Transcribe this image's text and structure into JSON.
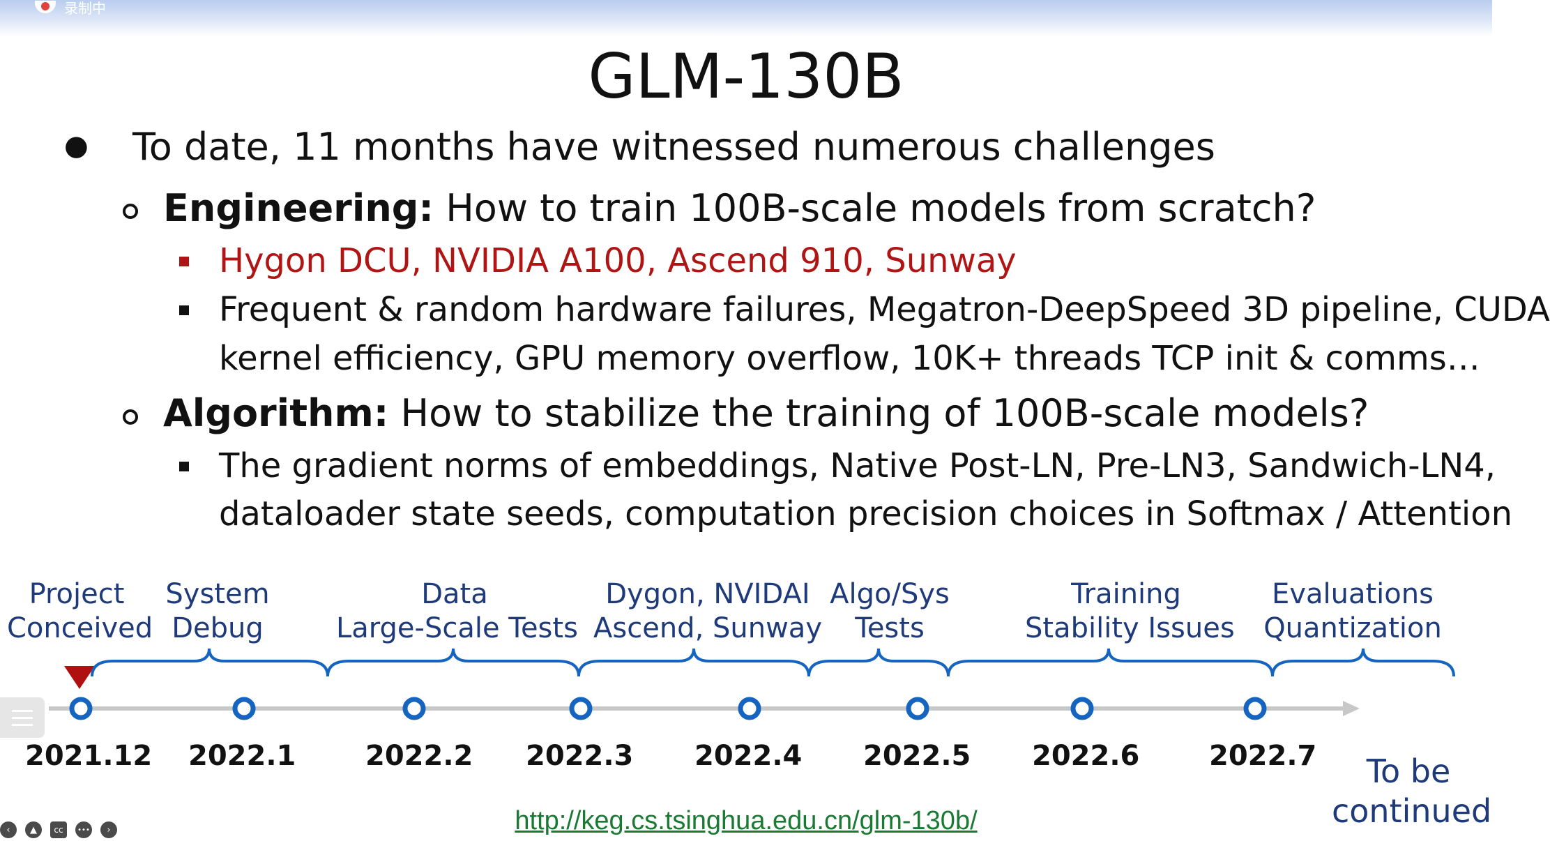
{
  "recording_label": "录制中",
  "title": "GLM-130B",
  "bullets": {
    "main": "To date, 11 months have witnessed numerous challenges",
    "engineering": {
      "label": "Engineering:",
      "text": " How to train 100B-scale models from scratch?",
      "items": [
        "Hygon DCU, NVIDIA A100, Ascend 910, Sunway",
        "Frequent & random hardware failures, Megatron-DeepSpeed 3D pipeline, CUDA",
        "kernel efficiency, GPU memory overflow, 10K+ threads TCP init & comms…"
      ]
    },
    "algorithm": {
      "label": "Algorithm:",
      "text": " How to stabilize the training of 100B-scale models?",
      "items": [
        "The gradient norms of embeddings, Native Post-LN, Pre-LN3, Sandwich-LN4,",
        "dataloader state seeds, computation precision choices in Softmax / Attention"
      ]
    }
  },
  "timeline": {
    "phases": [
      {
        "line1": "Project",
        "line2": "Conceived"
      },
      {
        "line1": "System",
        "line2": "Debug"
      },
      {
        "line1": "Data",
        "line2": "Large-Scale Tests"
      },
      {
        "line1": "Dygon, NVIDAI",
        "line2": "Ascend, Sunway"
      },
      {
        "line1": "Algo/Sys",
        "line2": "Tests"
      },
      {
        "line1": "Training",
        "line2": "Stability Issues"
      },
      {
        "line1": "Evaluations",
        "line2": "Quantization"
      }
    ],
    "dates": [
      "2021.12",
      "2022.1",
      "2022.2",
      "2022.3",
      "2022.4",
      "2022.5",
      "2022.6",
      "2022.7"
    ],
    "continued_line1": "To be",
    "continued_line2": "continued"
  },
  "url": "http://keg.cs.tsinghua.edu.cn/glm-130b/",
  "colors": {
    "timeline_blue": "#1565c0",
    "label_blue": "#1f3a7a",
    "highlight_red": "#b01515",
    "marker_red": "#b01010",
    "link_green": "#1a7a33"
  },
  "player_controls": [
    "prev-icon",
    "speaker-icon",
    "cc-icon",
    "more-icon",
    "next-icon"
  ],
  "player_control_glyphs": [
    "‹",
    "▲",
    "cc",
    "•••",
    "›"
  ]
}
